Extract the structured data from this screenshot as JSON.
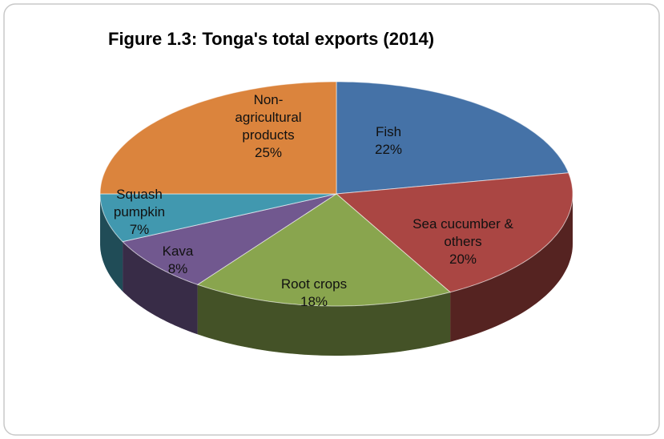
{
  "chart_data": {
    "type": "pie",
    "title": "Figure 1.3: Tonga's total exports (2014)",
    "categories": [
      "Fish",
      "Sea cucumber & others",
      "Root crops",
      "Kava",
      "Squash pumpkin",
      "Non-agricultural products"
    ],
    "values": [
      22,
      20,
      18,
      8,
      7,
      25
    ],
    "value_labels": [
      "22%",
      "20%",
      "18%",
      "8%",
      "7%",
      "25%"
    ],
    "colors": [
      "#4572a7",
      "#aa4643",
      "#89a54e",
      "#71588f",
      "#4198af",
      "#db843d"
    ]
  }
}
